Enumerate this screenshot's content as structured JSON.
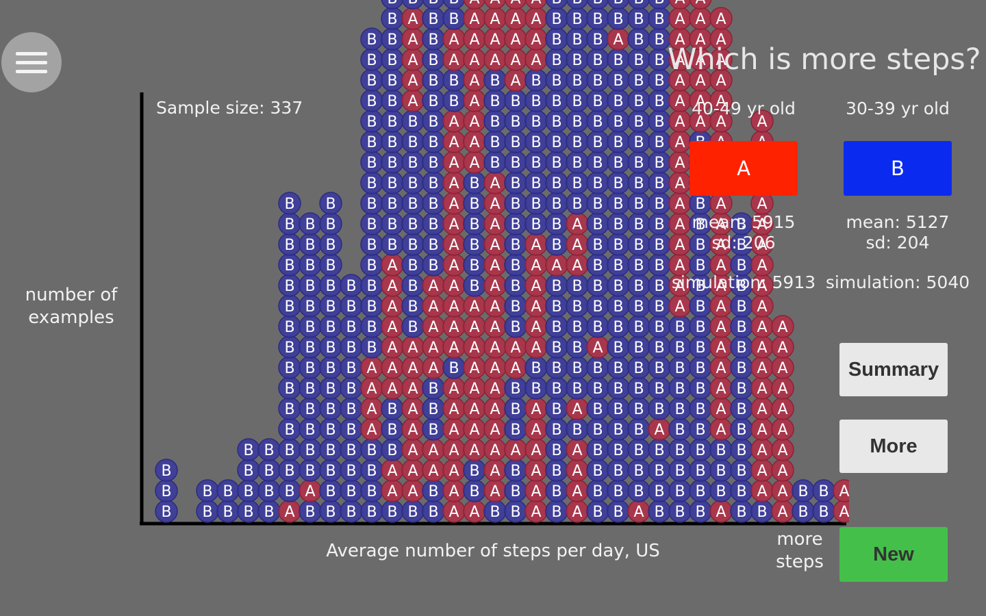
{
  "menu": {
    "icon": "hamburger-menu-icon"
  },
  "header": {
    "question": "Which is more steps?"
  },
  "plot": {
    "sample_label": "Sample size: 337",
    "ylabel_line1": "number of",
    "ylabel_line2": "examples",
    "xlabel": "Average number of steps per day, US",
    "more_line1": "more",
    "more_line2": "steps"
  },
  "groups": [
    {
      "label": "40-49 yr old",
      "button": "A",
      "color": "#ff2200",
      "mean": "mean: 5915",
      "sd": "sd: 206",
      "simulation": "simulation: 5913"
    },
    {
      "label": "30-39 yr old",
      "button": "B",
      "color": "#0a2bef",
      "mean": "mean: 5127",
      "sd": "sd: 204",
      "simulation": "simulation: 5040"
    }
  ],
  "buttons": {
    "summary": "Summary",
    "more": "More",
    "new": "New"
  },
  "chart_data": {
    "type": "scatter",
    "xlabel": "Average number of steps per day, US",
    "ylabel": "number of examples",
    "series": [
      {
        "name": "A",
        "color": "#b03048"
      },
      {
        "name": "B",
        "color": "#3a3a9e"
      }
    ],
    "columns": [
      "BBB",
      "",
      "BB",
      "BB",
      "BBBB",
      "BBBB",
      "ABBBBBBBBBBBBBBB",
      "BABBBBBBBBBBBBB",
      "BBBBBBBBBBBBBBBB",
      "BBBBBBBBBBBB",
      "BBBBAAAABBBBBBBBBBBBBBBB",
      "BAABBBAAAAAAABBBBBBBBBBBBBBBBBB",
      "BAAAAAAAABBBBBBBBBBBAAAAABBBBBBBBB",
      "BBAABBBAAAAABBBBBBBBBBBBBBBBBBB",
      "AAAAAAABAAAAAAAAAAAABBAABBBBBBBB",
      "ABBAAAAAAAABBBBBBAAAAAAAAABBBBBBBB",
      "BAAAAAAAAAAAAAAAABBBBBAAAAAAAAAA",
      "BBBABBBAABBBBBBBBBBBBAAAAAABBBBBBB",
      "AAAAAABBAAAAAABBBBBBBBAAAAABBBBBBBB",
      "BBBBBBBBBBBBABBBBBBBBBBBBBBBBBBB",
      "AAAABABBBBBBAAABBBBBBBBBBBBBBBBBBBB",
      "BBBBBBBBABBBBBBBBBBBBBBBBBBBBBBB",
      "BBBBBBBBBBBBBBBBBBBBBBBABBBBBB",
      "ABBBBBBBBBBBBBBBBBBBBBBBBBBB",
      "BBBBABBBBBBBBBBBBBBBBBBBBBBBAAAAAAA",
      "BBBBBBBBBBAAAAAAAAAAAAAAAAAAAAAAA",
      "BBBBBBBBBBBBBBBBBBBAAAAAAAAAAAAA",
      "ABBBAAAAAAAAAAAAAAAAAAAAA",
      "BBBBBBBBBBBBBBB",
      "BAAAAAAAAAAAAAAAAAAA",
      "AAAAAAAAAA",
      "BB",
      "BB",
      "AA",
      "A",
      "",
      "A"
    ]
  }
}
